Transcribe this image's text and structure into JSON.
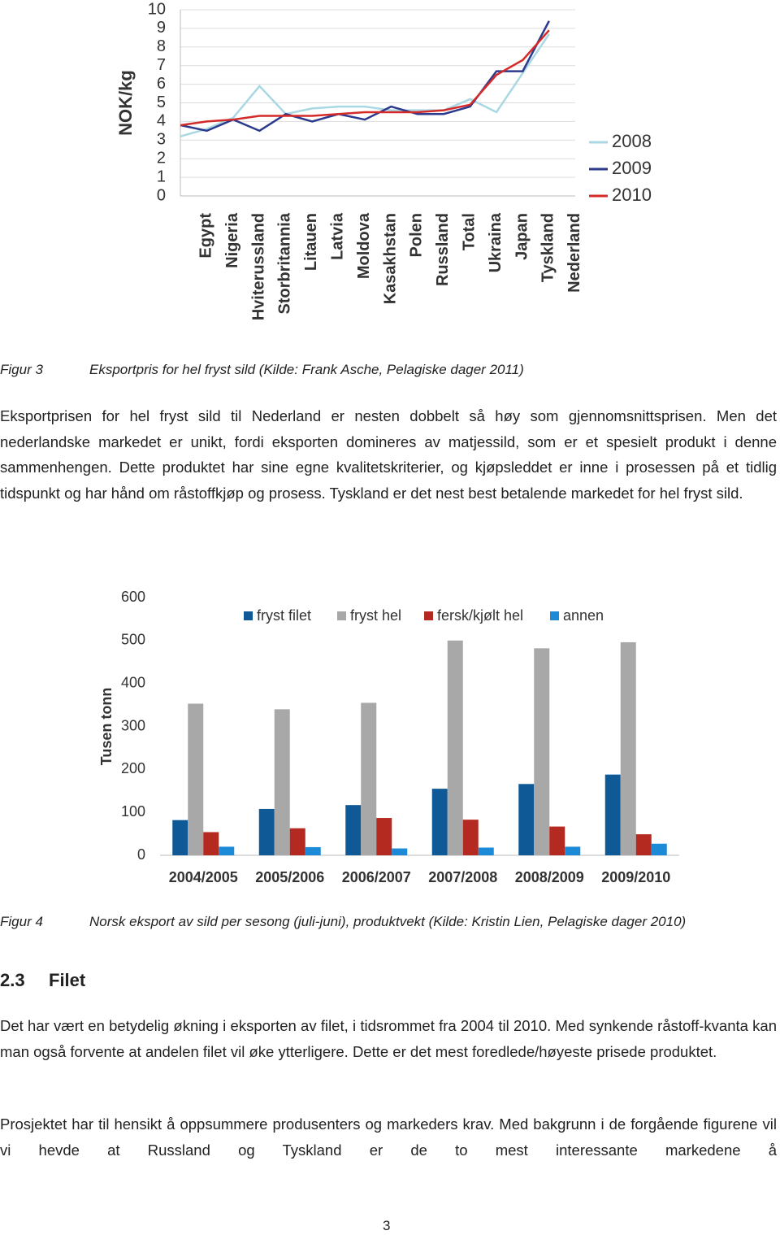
{
  "chart_data": [
    {
      "type": "line",
      "y_label": "NOK/kg",
      "categories": [
        "Egypt",
        "Nigeria",
        "Hviterussland",
        "Storbritannia",
        "Litauen",
        "Latvia",
        "Moldova",
        "Kasakhstan",
        "Polen",
        "Russland",
        "Total",
        "Ukraina",
        "Japan",
        "Tyskland",
        "Nederland"
      ],
      "series": [
        {
          "name": "2008",
          "color": "#a9d8e4",
          "values": [
            3.2,
            3.6,
            4.2,
            5.9,
            4.4,
            4.7,
            4.8,
            4.8,
            4.6,
            4.6,
            4.6,
            5.2,
            4.5,
            6.6,
            8.7
          ]
        },
        {
          "name": "2009",
          "color": "#2b3a8c",
          "values": [
            3.8,
            3.5,
            4.1,
            3.5,
            4.4,
            4.0,
            4.4,
            4.1,
            4.8,
            4.4,
            4.4,
            4.8,
            6.7,
            6.7,
            9.4
          ]
        },
        {
          "name": "2010",
          "color": "#d42a2a",
          "values": [
            3.8,
            4.0,
            4.1,
            4.3,
            4.3,
            4.3,
            4.4,
            4.5,
            4.5,
            4.5,
            4.6,
            4.9,
            6.5,
            7.3,
            8.9
          ]
        }
      ],
      "ylim": [
        0,
        10
      ],
      "yticks": [
        0,
        1,
        2,
        3,
        4,
        5,
        6,
        7,
        8,
        9,
        10
      ],
      "grid": true,
      "legend": "right"
    },
    {
      "type": "bar",
      "y_label": "Tusen tonn",
      "categories": [
        "2004/2005",
        "2005/2006",
        "2006/2007",
        "2007/2008",
        "2008/2009",
        "2009/2010"
      ],
      "series": [
        {
          "name": "fryst filet",
          "color": "#0f5a96",
          "values": [
            82,
            108,
            117,
            155,
            166,
            188
          ]
        },
        {
          "name": "fryst hel",
          "color": "#a8a8a8",
          "values": [
            353,
            340,
            355,
            500,
            482,
            496
          ]
        },
        {
          "name": "fersk/kjølt hel",
          "color": "#b52a20",
          "values": [
            54,
            63,
            87,
            83,
            67,
            49
          ]
        },
        {
          "name": "annen",
          "color": "#1c8ad6",
          "values": [
            20,
            19,
            16,
            18,
            20,
            27
          ]
        }
      ],
      "ylim": [
        0,
        600
      ],
      "yticks": [
        0,
        100,
        200,
        300,
        400,
        500,
        600
      ],
      "grid": false,
      "legend": "top"
    }
  ],
  "figure_captions": [
    {
      "label": "Figur 3",
      "text": "Eksportpris for hel fryst sild (Kilde: Frank Asche, Pelagiske dager 2011)"
    },
    {
      "label": "Figur 4",
      "text": "Norsk eksport av sild per sesong (juli-juni), produktvekt (Kilde: Kristin Lien, Pelagiske dager 2010)"
    }
  ],
  "paragraphs": [
    "Eksportprisen for hel fryst sild til Nederland er nesten dobbelt så høy som gjennomsnittsprisen. Men det nederlandske markedet er unikt, fordi eksporten domineres av matjessild, som er et spesielt produkt i denne sammenhengen. Dette produktet har sine egne kvalitetskriterier, og kjøpsleddet er inne i prosessen på et tidlig tidspunkt og har hånd om råstoffkjøp og prosess. Tyskland er det nest best betalende markedet for hel fryst sild.",
    "Det har vært en betydelig økning i eksporten av filet, i tidsrommet fra 2004 til 2010. Med synkende råstoff-kvanta kan man også forvente at andelen filet vil øke ytterligere. Dette er det mest foredlede/høyeste prisede produktet.",
    "Prosjektet har til hensikt å oppsummere produsenters og markeders krav. Med bakgrunn i de forgående figurene vil vi hevde at Russland og Tyskland er de to mest interessante markedene å"
  ],
  "section": {
    "number": "2.3",
    "title": "Filet"
  },
  "page_number": "3"
}
